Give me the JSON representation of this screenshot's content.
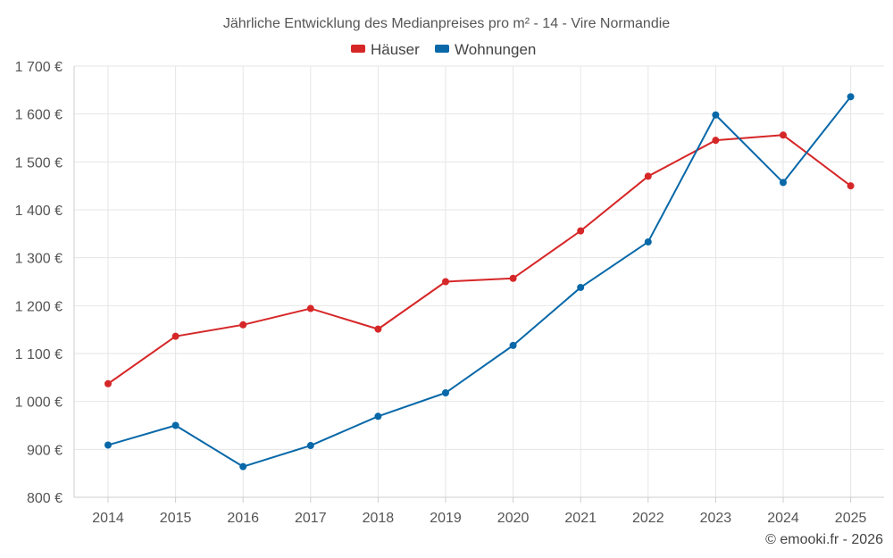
{
  "chart_data": {
    "type": "line",
    "title": "Jährliche Entwicklung des Medianpreises pro m² - 14 - Vire Normandie",
    "categories": [
      "2014",
      "2015",
      "2016",
      "2017",
      "2018",
      "2019",
      "2020",
      "2021",
      "2022",
      "2023",
      "2024",
      "2025"
    ],
    "series": [
      {
        "name": "Häuser",
        "color": "#d62728",
        "values": [
          1037,
          1136,
          1160,
          1194,
          1151,
          1250,
          1257,
          1356,
          1470,
          1545,
          1556,
          1450
        ]
      },
      {
        "name": "Wohnungen",
        "color": "#0868a8",
        "values": [
          909,
          950,
          864,
          908,
          969,
          1018,
          1117,
          1238,
          1333,
          1598,
          1457,
          1636
        ]
      }
    ],
    "ylim": [
      800,
      1700
    ],
    "ytick_values": [
      800,
      900,
      1000,
      1100,
      1200,
      1300,
      1400,
      1500,
      1600,
      1700
    ],
    "ytick_labels": [
      "800 €",
      "900 €",
      "1 000 €",
      "1 100 €",
      "1 200 €",
      "1 300 €",
      "1 400 €",
      "1 500 €",
      "1 600 €",
      "1 700 €"
    ],
    "grid": true,
    "legend_position": "top-center"
  },
  "footer": {
    "credit": "© emooki.fr - 2026"
  }
}
